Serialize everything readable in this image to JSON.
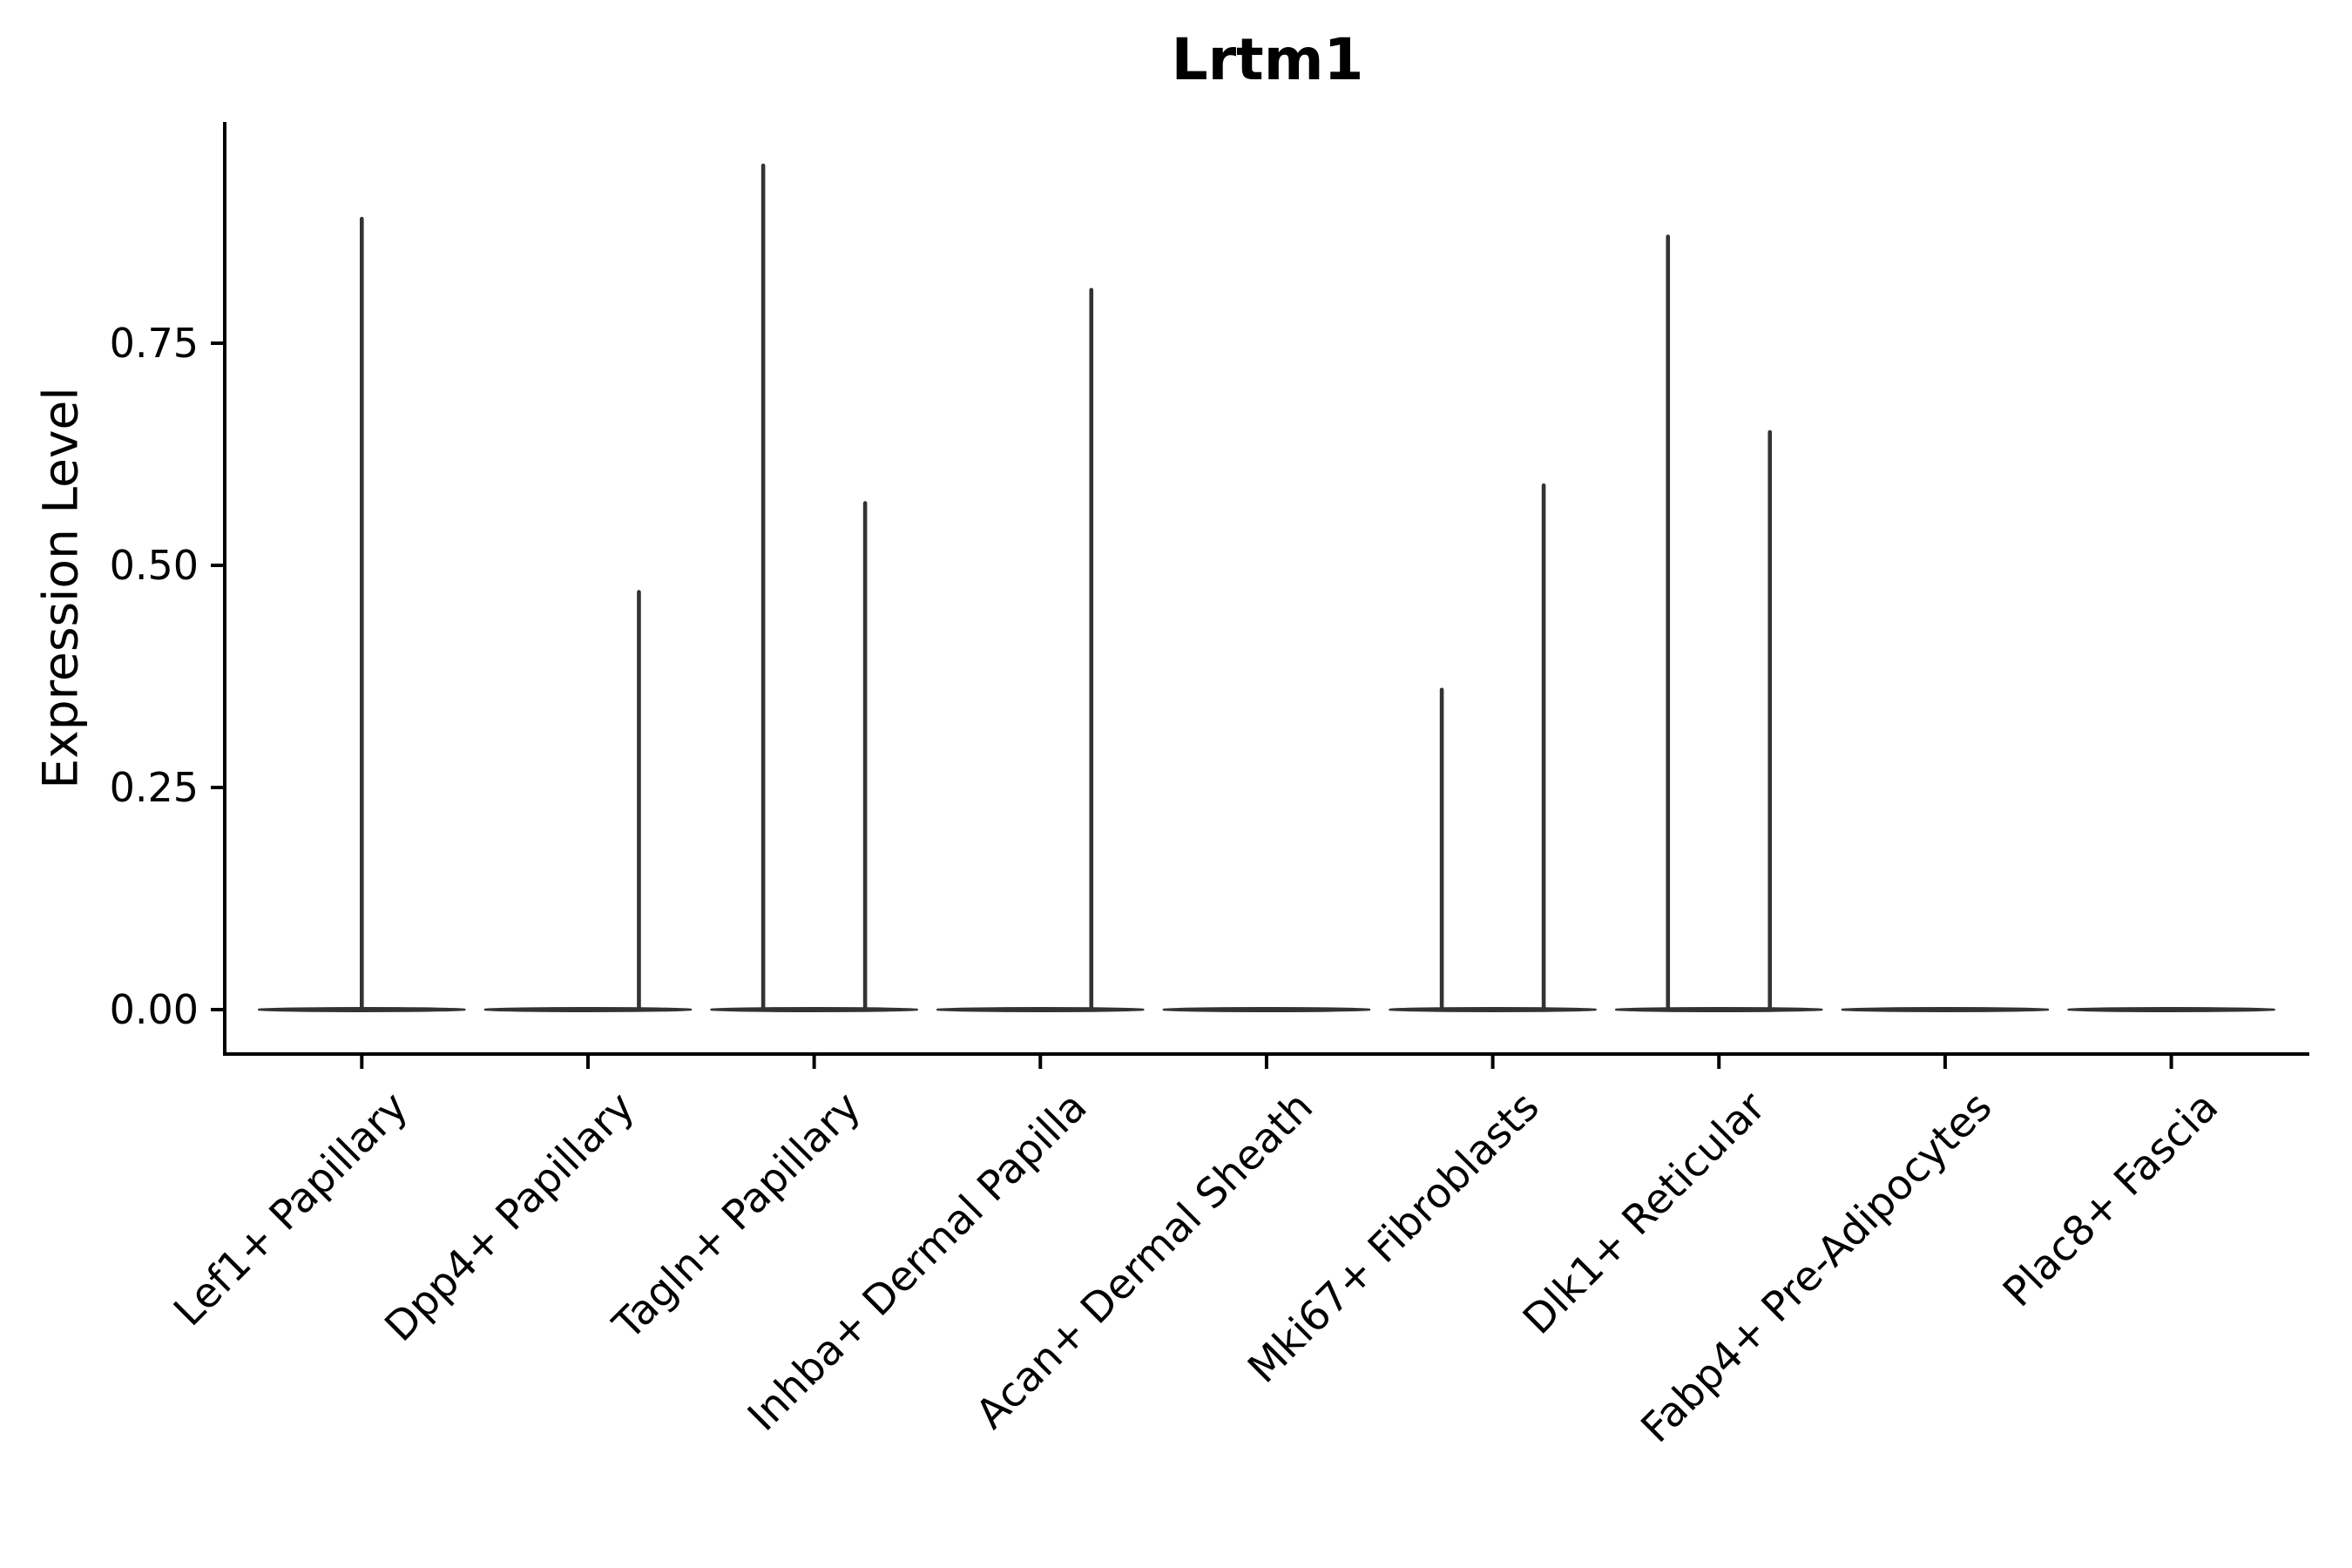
{
  "figure": {
    "title": "Lrtm1",
    "y_axis": {
      "label": "Expression Level"
    }
  },
  "chart_data": {
    "type": "violin",
    "title": "Lrtm1",
    "xlabel": "",
    "ylabel": "Expression Level",
    "ylim": [
      0,
      1.0
    ],
    "y_tick_values": [
      0,
      0.25,
      0.5,
      0.75
    ],
    "y_tick_labels": [
      "0.00",
      "0.25",
      "0.50",
      "0.75"
    ],
    "grid": false,
    "legend": "none",
    "categories": [
      "Lef1+ Papillary",
      "Dpp4+ Papillary",
      "Tagln+ Papillary",
      "Inhba+ Dermal Papilla",
      "Acan+ Dermal Sheath",
      "Mki67+ Fibroblasts",
      "Dlk1+ Reticular",
      "Fabp4+ Pre-Adipocytes",
      "Plac8+ Fascia"
    ],
    "violins": [
      {
        "category": "Lef1+ Papillary",
        "baseline": 0,
        "spikes": [
          {
            "position": "center",
            "max": 0.89
          }
        ]
      },
      {
        "category": "Dpp4+ Papillary",
        "baseline": 0,
        "spikes": [
          {
            "position": "right",
            "max": 0.47
          }
        ]
      },
      {
        "category": "Tagln+ Papillary",
        "baseline": 0,
        "spikes": [
          {
            "position": "left",
            "max": 0.95
          },
          {
            "position": "right",
            "max": 0.57
          }
        ]
      },
      {
        "category": "Inhba+ Dermal Papilla",
        "baseline": 0,
        "spikes": [
          {
            "position": "right",
            "max": 0.81
          }
        ]
      },
      {
        "category": "Acan+ Dermal Sheath",
        "baseline": 0,
        "spikes": []
      },
      {
        "category": "Mki67+ Fibroblasts",
        "baseline": 0,
        "spikes": [
          {
            "position": "left",
            "max": 0.36
          },
          {
            "position": "right",
            "max": 0.59
          }
        ]
      },
      {
        "category": "Dlk1+ Reticular",
        "baseline": 0,
        "spikes": [
          {
            "position": "left",
            "max": 0.87
          },
          {
            "position": "right",
            "max": 0.65
          }
        ]
      },
      {
        "category": "Fabp4+ Pre-Adipocytes",
        "baseline": 0,
        "spikes": []
      },
      {
        "category": "Plac8+ Fascia",
        "baseline": 0,
        "spikes": []
      }
    ],
    "colors": {
      "violin_stroke": "#333333",
      "axis": "#000000",
      "text": "#000000",
      "background": "#ffffff"
    }
  }
}
